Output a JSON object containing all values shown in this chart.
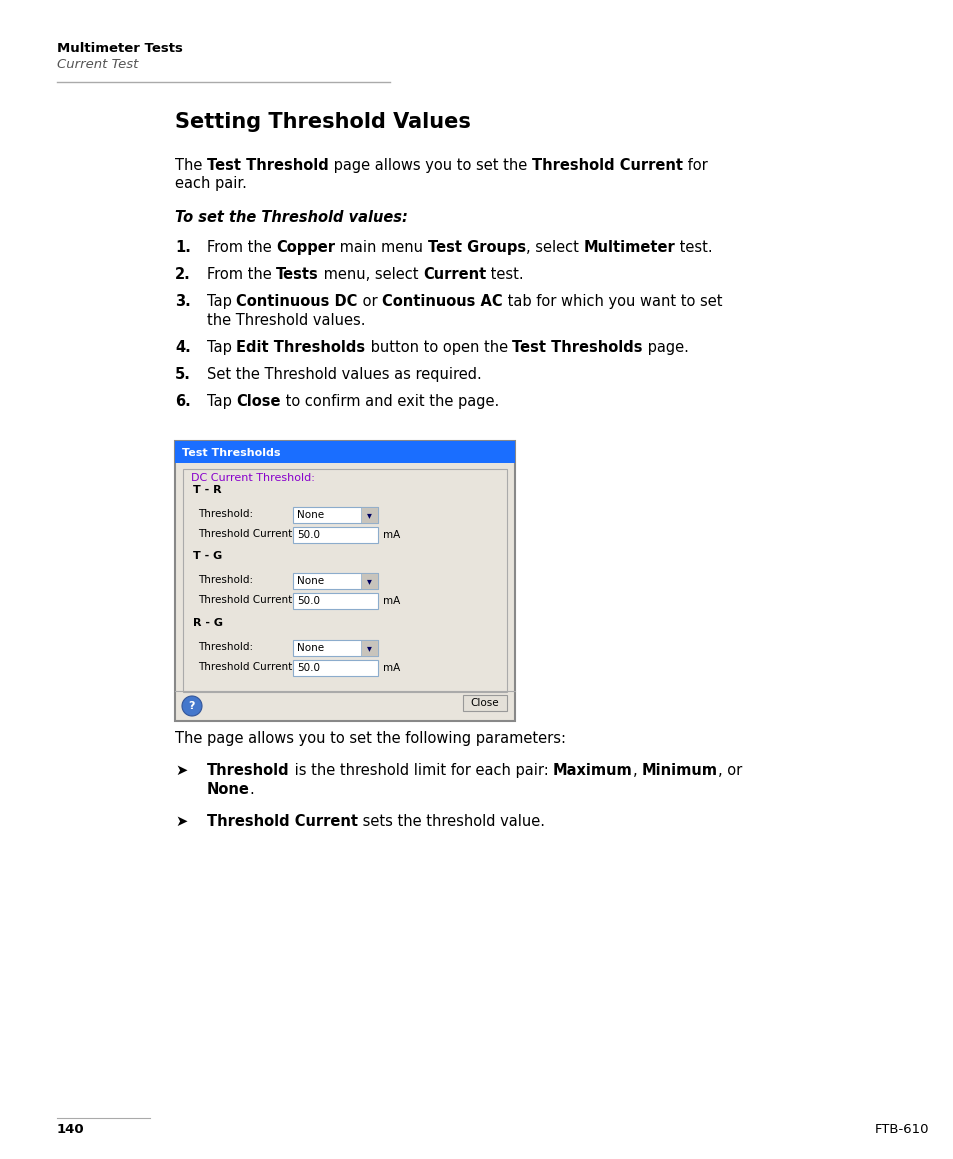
{
  "bg_color": "#ffffff",
  "header_bold": "Multimeter Tests",
  "header_italic": "Current Test",
  "title": "Setting Threshold Values",
  "intro_parts": [
    [
      "The ",
      false
    ],
    [
      "Test Threshold",
      true
    ],
    [
      " page allows you to set the ",
      false
    ],
    [
      "Threshold Current",
      true
    ],
    [
      " for",
      false
    ]
  ],
  "intro_line2": "each pair.",
  "procedure_title": "To set the Threshold values:",
  "steps": [
    [
      [
        "From the ",
        false
      ],
      [
        "Copper",
        true
      ],
      [
        " main menu ",
        false
      ],
      [
        "Test Groups",
        true
      ],
      [
        ", select ",
        false
      ],
      [
        "Multimeter",
        true
      ],
      [
        " test.",
        false
      ]
    ],
    [
      [
        "From the ",
        false
      ],
      [
        "Tests",
        true
      ],
      [
        " menu, select ",
        false
      ],
      [
        "Current",
        true
      ],
      [
        " test.",
        false
      ]
    ],
    [
      [
        "Tap ",
        false
      ],
      [
        "Continuous DC",
        true
      ],
      [
        " or ",
        false
      ],
      [
        "Continuous AC",
        true
      ],
      [
        " tab for which you want to set",
        false
      ]
    ],
    [
      [
        "the Threshold values.",
        false
      ]
    ],
    [
      [
        "Tap ",
        false
      ],
      [
        "Edit Thresholds",
        true
      ],
      [
        " button to open the ",
        false
      ],
      [
        "Test Thresholds",
        true
      ],
      [
        " page.",
        false
      ]
    ],
    [
      [
        "Set the Threshold values as required.",
        false
      ]
    ],
    [
      [
        "Tap ",
        false
      ],
      [
        "Close",
        true
      ],
      [
        " to confirm and exit the page.",
        false
      ]
    ]
  ],
  "step_indices": [
    0,
    1,
    2,
    4,
    5,
    6
  ],
  "footer_text": "The page allows you to set the following parameters:",
  "bullet_items": [
    [
      [
        "Threshold",
        true
      ],
      [
        " is the threshold limit for each pair: ",
        false
      ],
      [
        "Maximum",
        true
      ],
      [
        ", ",
        false
      ],
      [
        "Minimum",
        true
      ],
      [
        ", or",
        false
      ]
    ],
    [
      [
        "None",
        true
      ],
      [
        ".",
        false
      ]
    ],
    [
      [
        "Threshold Current",
        true
      ],
      [
        " sets the threshold value.",
        false
      ]
    ]
  ],
  "bullet_item_indices": [
    0,
    2
  ],
  "page_num": "140",
  "page_right": "FTB-610",
  "dialog": {
    "title": "Test Thresholds",
    "title_bg": "#1a6eff",
    "title_fg": "#ffffff",
    "body_bg": "#e8e4dc",
    "border_color": "#888888",
    "section_title": "DC Current Threshold:",
    "section_color": "#8800cc",
    "groups": [
      {
        "label": "T - R",
        "threshold": "None",
        "current": "50.0"
      },
      {
        "label": "T - G",
        "threshold": "None",
        "current": "50.0"
      },
      {
        "label": "R - G",
        "threshold": "None",
        "current": "50.0"
      }
    ]
  }
}
